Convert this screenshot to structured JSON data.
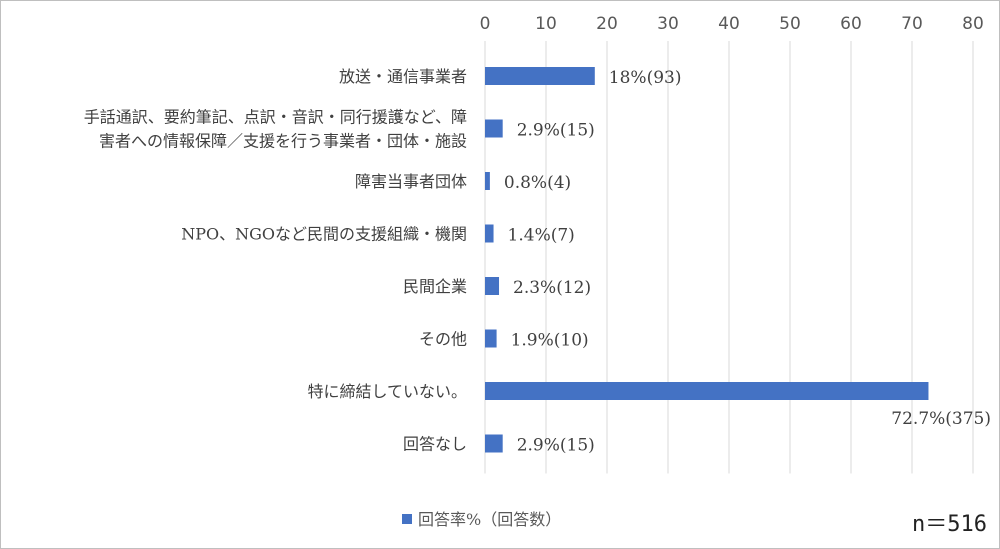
{
  "chart_data": {
    "type": "bar",
    "orientation": "horizontal",
    "categories": [
      "放送・通信事業者",
      [
        "手話通訳、要約筆記、点訳・音訳・同行援護など、障",
        "害者への情報保障／支援を行う事業者・団体・施設"
      ],
      "障害当事者団体",
      "NPO、NGOなど民間の支援組織・機関",
      "民間企業",
      "その他",
      "特に締結していない。",
      "回答なし"
    ],
    "series": [
      {
        "name": "回答率%（回答数）",
        "values": [
          18,
          2.9,
          0.8,
          1.4,
          2.3,
          1.9,
          72.7,
          2.9
        ],
        "data_labels": [
          "18%(93)",
          "2.9%(15)",
          "0.8%(4)",
          "1.4%(7)",
          "2.3%(12)",
          "1.9%(10)",
          "72.7%(375)",
          "2.9%(15)"
        ]
      }
    ],
    "xlim": [
      0,
      80
    ],
    "x_ticks": [
      0,
      10,
      20,
      30,
      40,
      50,
      60,
      70,
      80
    ],
    "x_axis_position": "top",
    "grid": true,
    "legend_position": "bottom-left",
    "bar_color": "#4472c4",
    "grid_color": "#d9d9d9"
  },
  "note": "n＝516"
}
